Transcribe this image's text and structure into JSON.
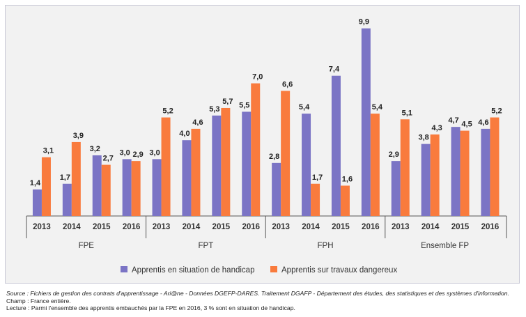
{
  "chart_data": {
    "type": "bar",
    "groups": [
      {
        "label": "FPE",
        "years": [
          "2013",
          "2014",
          "2015",
          "2016"
        ]
      },
      {
        "label": "FPT",
        "years": [
          "2013",
          "2014",
          "2015",
          "2016"
        ]
      },
      {
        "label": "FPH",
        "years": [
          "2013",
          "2014",
          "2015",
          "2016"
        ]
      },
      {
        "label": "Ensemble FP",
        "years": [
          "2013",
          "2014",
          "2015",
          "2016"
        ]
      }
    ],
    "series": [
      {
        "name": "Apprentis en situation de handicap",
        "color": "#7b74c5",
        "values": [
          1.4,
          1.7,
          3.2,
          3.0,
          3.0,
          4.0,
          5.3,
          5.5,
          2.8,
          5.4,
          7.4,
          9.9,
          2.9,
          3.8,
          4.7,
          4.6
        ]
      },
      {
        "name": "Apprentis sur travaux dangereux",
        "color": "#f97b3d",
        "values": [
          3.1,
          3.9,
          2.7,
          2.9,
          5.2,
          4.6,
          5.7,
          7.0,
          6.6,
          1.7,
          1.6,
          5.4,
          5.1,
          4.3,
          4.5,
          5.2
        ]
      }
    ],
    "ylim": [
      0,
      10
    ],
    "grid": false,
    "legend": "bottom",
    "decimal_separator": ","
  },
  "notes": {
    "source": "Source : Fichiers de gestion des contrats d'apprentissage - Ari@ne - Données DGEFP-DARES. Traitement DGAFP - Département des études, des statistiques et des systèmes d'information.",
    "champ": "Champ : France entière.",
    "lecture": "Lecture : Parmi l'ensemble des apprentis embauchés par la FPE en 2016, 3 % sont en situation de handicap."
  }
}
